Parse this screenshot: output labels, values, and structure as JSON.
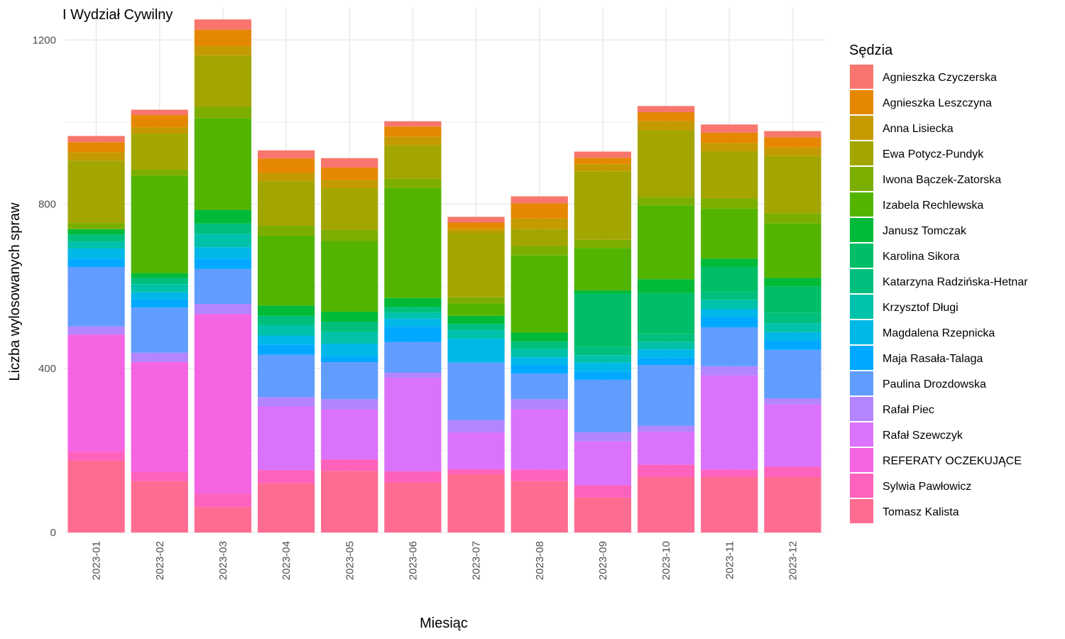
{
  "chart_data": {
    "type": "bar",
    "stacked": true,
    "title": "I Wydział Cywilny",
    "xlabel": "Miesiąc",
    "ylabel": "Liczba wylosowanych spraw",
    "ylim": [
      0,
      1280
    ],
    "yticks": [
      0,
      400,
      800,
      1200
    ],
    "grid": true,
    "legend_title": "Sędzia",
    "legend_position": "right",
    "categories": [
      "2023-01",
      "2023-02",
      "2023-03",
      "2023-04",
      "2023-05",
      "2023-06",
      "2023-07",
      "2023-08",
      "2023-09",
      "2023-10",
      "2023-11",
      "2023-12"
    ],
    "series": [
      {
        "name": "Tomasz Kalista",
        "color": "#FF6C91",
        "values": [
          175,
          125,
          62,
          120,
          150,
          122,
          142,
          125,
          85,
          135,
          135,
          135
        ]
      },
      {
        "name": "Sylwia Pawłowicz",
        "color": "#FF62BC",
        "values": [
          22,
          23,
          33,
          32,
          28,
          27,
          12,
          28,
          30,
          30,
          18,
          25
        ]
      },
      {
        "name": "REFERATY OCZEKUJĄCE",
        "color": "#F564E3",
        "values": [
          285,
          267,
          437,
          0,
          0,
          0,
          0,
          0,
          0,
          0,
          0,
          0
        ]
      },
      {
        "name": "Rafał Szewczyk",
        "color": "#DB72FB",
        "values": [
          0,
          0,
          0,
          155,
          122,
          228,
          90,
          147,
          107,
          80,
          230,
          152
        ]
      },
      {
        "name": "Rafał Piec",
        "color": "#B385FF",
        "values": [
          20,
          23,
          25,
          23,
          25,
          12,
          30,
          25,
          22,
          15,
          22,
          15
        ]
      },
      {
        "name": "Paulina Drozdowska",
        "color": "#619CFF",
        "values": [
          145,
          110,
          85,
          103,
          90,
          75,
          140,
          62,
          128,
          148,
          95,
          118
        ]
      },
      {
        "name": "Maja Rasała-Talaga",
        "color": "#00A9FF",
        "values": [
          20,
          20,
          25,
          25,
          15,
          37,
          0,
          22,
          20,
          18,
          25,
          23
        ]
      },
      {
        "name": "Magdalena Rzepnicka",
        "color": "#00B8E7",
        "values": [
          25,
          17,
          28,
          22,
          30,
          20,
          58,
          18,
          22,
          20,
          20,
          20
        ]
      },
      {
        "name": "Krzysztof Długi",
        "color": "#00C1A9",
        "values": [
          17,
          20,
          33,
          25,
          28,
          15,
          22,
          20,
          18,
          18,
          22,
          22
        ]
      },
      {
        "name": "Katarzyna Radzińska-Hetnar",
        "color": "#00BF7D",
        "values": [
          17,
          15,
          25,
          23,
          25,
          13,
          14,
          18,
          20,
          20,
          20,
          25
        ]
      },
      {
        "name": "Karolina Sikora",
        "color": "#00BE67",
        "values": [
          0,
          0,
          0,
          0,
          0,
          0,
          0,
          0,
          130,
          100,
          60,
          65
        ]
      },
      {
        "name": "Janusz Tomczak",
        "color": "#00BA38",
        "values": [
          13,
          12,
          33,
          25,
          25,
          22,
          20,
          22,
          8,
          33,
          20,
          20
        ]
      },
      {
        "name": "Izabela Rechlewska",
        "color": "#53B400",
        "values": [
          0,
          237,
          223,
          170,
          172,
          268,
          30,
          188,
          103,
          180,
          122,
          133
        ]
      },
      {
        "name": "Iwona Bączek-Zatorska",
        "color": "#7CAE00",
        "values": [
          15,
          15,
          28,
          25,
          27,
          23,
          15,
          23,
          20,
          20,
          25,
          25
        ]
      },
      {
        "name": "Ewa Potycz-Pundyk",
        "color": "#A3A500",
        "values": [
          152,
          88,
          125,
          108,
          102,
          82,
          157,
          42,
          167,
          163,
          115,
          140
        ]
      },
      {
        "name": "Anna Lisiecka",
        "color": "#C49A00",
        "values": [
          20,
          15,
          23,
          20,
          20,
          20,
          10,
          25,
          18,
          22,
          20,
          20
        ]
      },
      {
        "name": "Agnieszka Leszczyna",
        "color": "#E58700",
        "values": [
          25,
          30,
          40,
          35,
          30,
          25,
          15,
          37,
          15,
          22,
          25,
          25
        ]
      },
      {
        "name": "Agnieszka Czyczerska",
        "color": "#F8766D",
        "values": [
          15,
          13,
          25,
          20,
          23,
          13,
          14,
          17,
          15,
          15,
          20,
          15
        ]
      }
    ]
  }
}
